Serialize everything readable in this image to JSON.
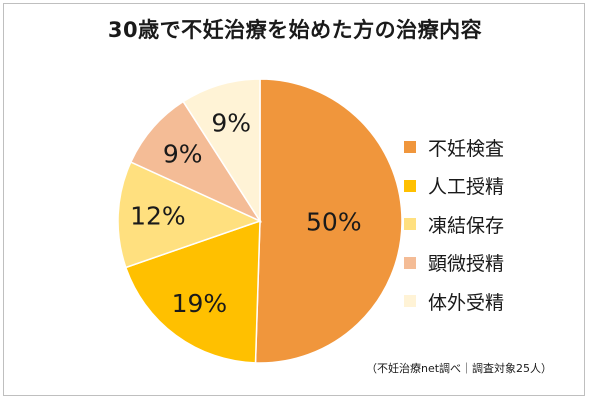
{
  "chart_data": {
    "type": "pie",
    "title": "30歳で不妊治療を始めた方の治療内容",
    "categories": [
      "不妊検査",
      "人工授精",
      "凍結保存",
      "顕微授精",
      "体外受精"
    ],
    "values": [
      50,
      19,
      12,
      9,
      9
    ],
    "value_labels": [
      "50%",
      "19%",
      "12%",
      "9%",
      "9%"
    ],
    "colors": [
      "#F0963C",
      "#FFC000",
      "#FFE07F",
      "#F4BC96",
      "#FFF3D6"
    ],
    "start": "12 o'clock",
    "direction": "clockwise",
    "legend_position": "right",
    "source_note": "（不妊治療net調べ｜調査対象25人）"
  }
}
